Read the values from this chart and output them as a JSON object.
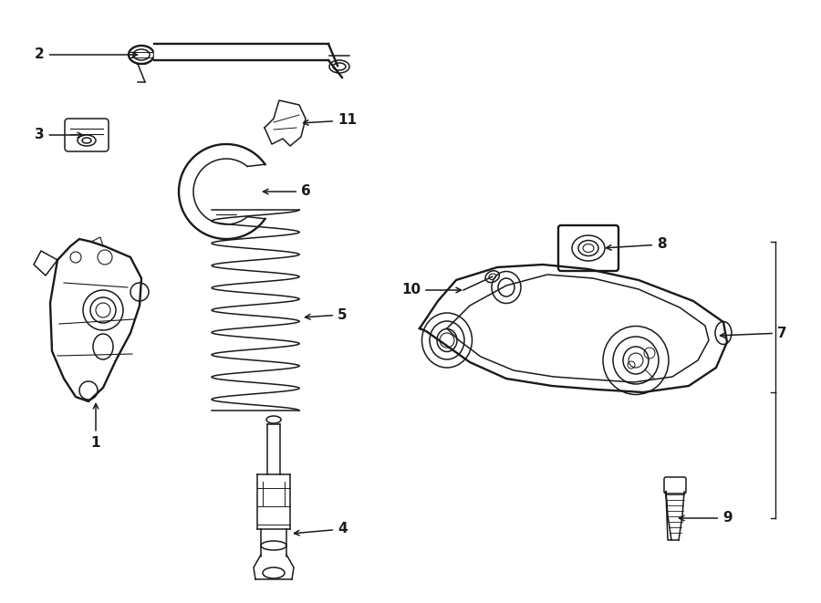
{
  "bg_color": "#ffffff",
  "line_color": "#1a1a1a",
  "fig_width": 9.0,
  "fig_height": 6.61,
  "dpi": 100,
  "lw": 1.1,
  "lwt": 1.7
}
